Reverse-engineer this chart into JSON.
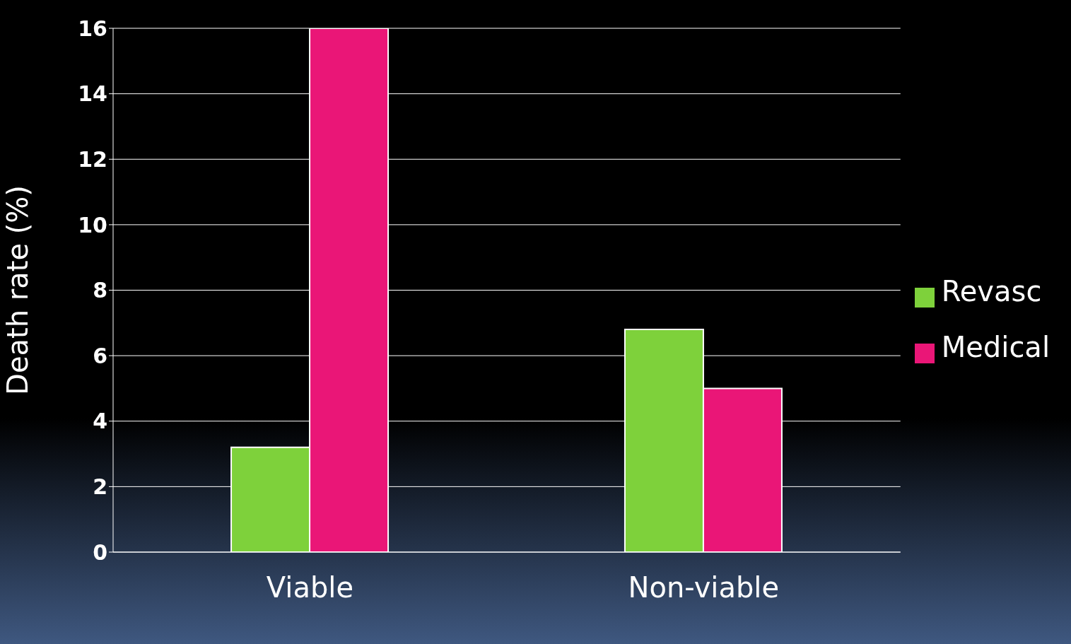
{
  "chart_data": {
    "type": "bar",
    "ylabel": "Death rate (%)",
    "categories": [
      "Viable",
      "Non-viable"
    ],
    "series": [
      {
        "name": "Revasc",
        "color": "#7ed13b",
        "values": [
          3.2,
          6.8
        ]
      },
      {
        "name": "Medical",
        "color": "#ea1677",
        "values": [
          16,
          5.0
        ]
      }
    ],
    "ylim": [
      0,
      16
    ],
    "yticks": [
      0,
      2,
      4,
      6,
      8,
      10,
      12,
      14,
      16
    ],
    "grid": "y",
    "legend": "right"
  }
}
